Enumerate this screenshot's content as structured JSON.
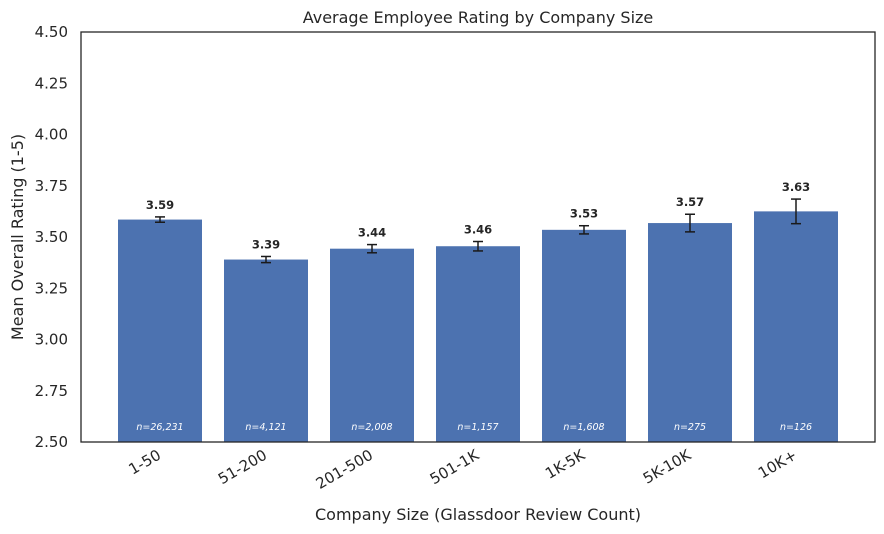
{
  "chart_data": {
    "type": "bar",
    "title": "Average Employee Rating by Company Size",
    "xlabel": "Company Size (Glassdoor Review Count)",
    "ylabel": "Mean Overall Rating (1-5)",
    "ylim": [
      2.5,
      4.5
    ],
    "yticks": [
      "2.50",
      "2.75",
      "3.00",
      "3.25",
      "3.50",
      "3.75",
      "4.00",
      "4.25",
      "4.50"
    ],
    "categories": [
      "1-50",
      "51-200",
      "201-500",
      "501-1K",
      "1K-5K",
      "5K-10K",
      "10K+"
    ],
    "values": [
      3.585,
      3.39,
      3.443,
      3.455,
      3.535,
      3.568,
      3.625
    ],
    "error": [
      0.013,
      0.015,
      0.02,
      0.023,
      0.02,
      0.043,
      0.06
    ],
    "value_labels": [
      "3.59",
      "3.39",
      "3.44",
      "3.46",
      "3.53",
      "3.57",
      "3.63"
    ],
    "n_labels": [
      "n=26,231",
      "n=4,121",
      "n=2,008",
      "n=1,157",
      "n=1,608",
      "n=275",
      "n=126"
    ],
    "bar_color": "#4c72b0",
    "grid": false,
    "legend": "none"
  }
}
